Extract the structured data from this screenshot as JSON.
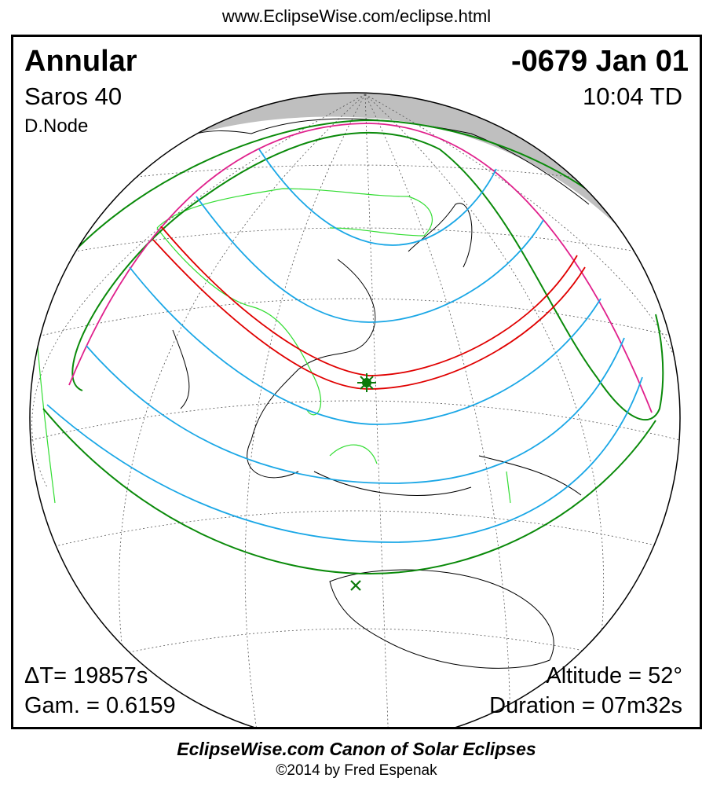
{
  "header": {
    "url": "www.EclipseWise.com/eclipse.html"
  },
  "eclipse": {
    "type": "Annular",
    "date": "-0679 Jan 01",
    "saros": "Saros  40",
    "time": "10:04 TD",
    "node": "D.Node",
    "delta_t": "ΔT=  19857s",
    "gamma": "Gam. = 0.6159",
    "altitude": "Altitude = 52°",
    "duration": "Duration = 07m32s"
  },
  "footer": {
    "canon": "EclipseWise.com Canon of Solar Eclipses",
    "copyright": "©2014 by Fred Espenak"
  },
  "map": {
    "projection": "orthographic",
    "markers": [
      "greatest-eclipse-star",
      "greatest-duration-x"
    ],
    "colors": {
      "night": "#bfbfbf",
      "borders": "#33dd33",
      "central_path": "#e00000",
      "penumbral_limits": "#0a8a0a",
      "rise_set": "#e0208c",
      "magnitude_curves": "#1aa7e6",
      "marker": "#0a7a0a"
    }
  }
}
